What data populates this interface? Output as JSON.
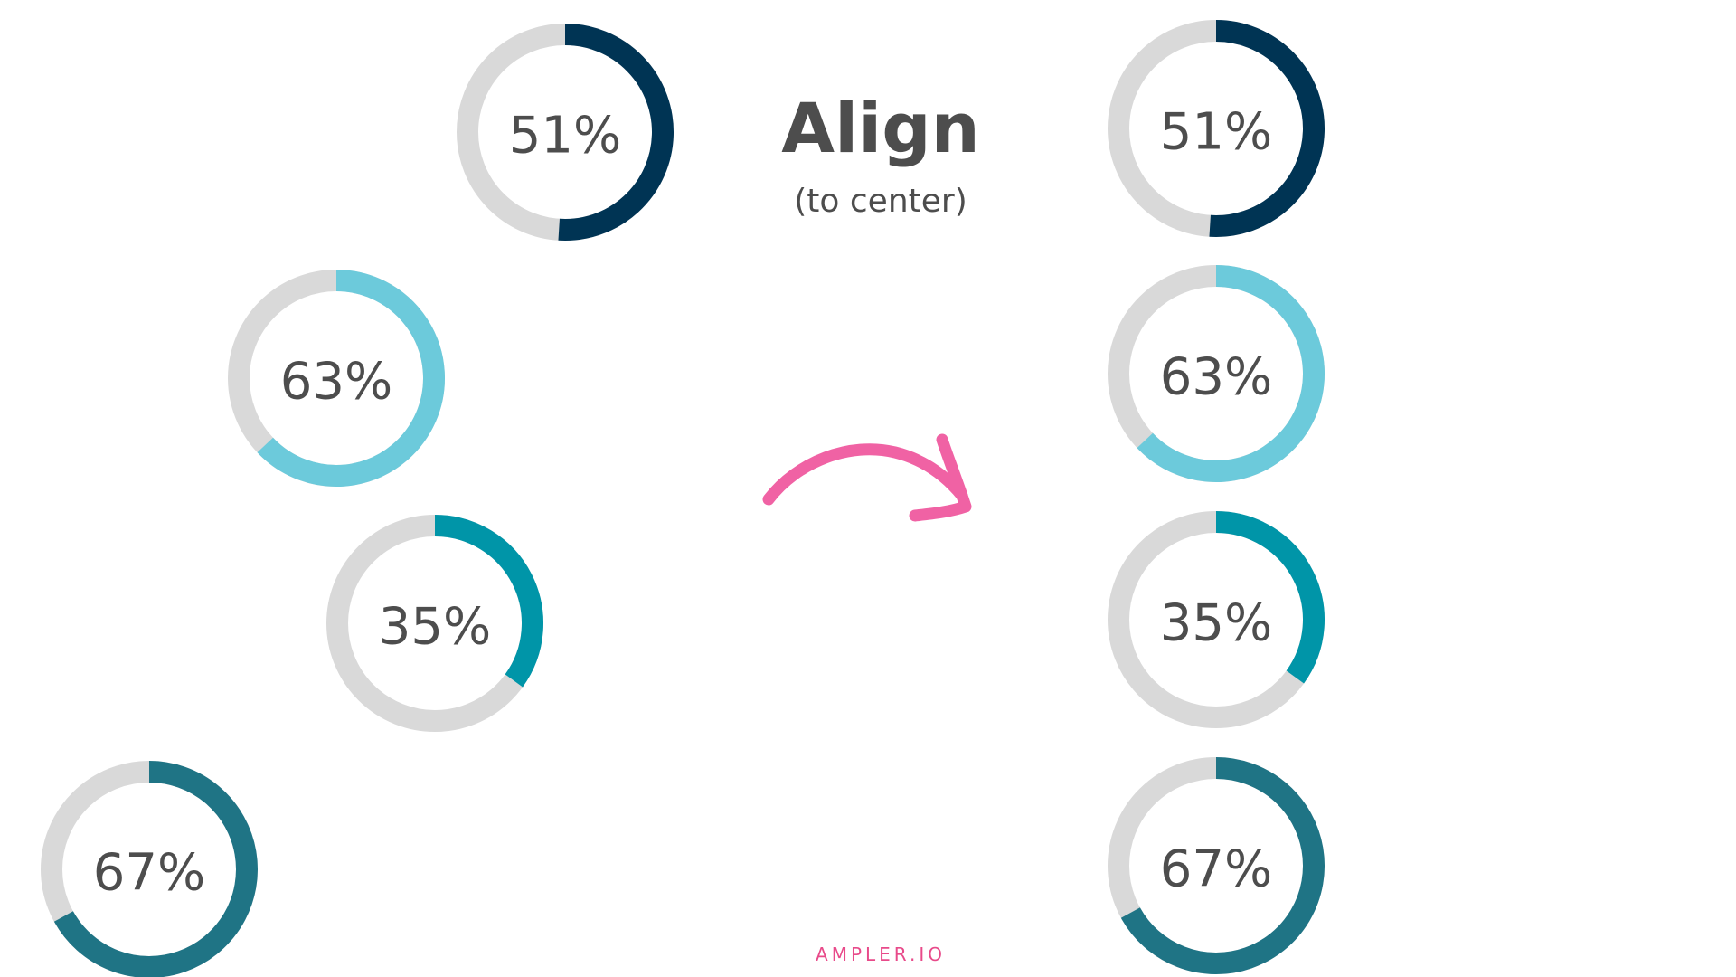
{
  "heading": {
    "title": "Align",
    "subtitle": "(to center)"
  },
  "footer": {
    "brand": "AMPLER.IO"
  },
  "colors": {
    "track": "#d9d9d9",
    "text": "#4d4d4d",
    "arrow": "#f062a4",
    "brand": "#e84a8a"
  },
  "before": {
    "donuts": [
      {
        "label": "51%",
        "value": 51,
        "color": "#003454"
      },
      {
        "label": "63%",
        "value": 63,
        "color": "#6ccadb"
      },
      {
        "label": "35%",
        "value": 35,
        "color": "#0095a8"
      },
      {
        "label": "67%",
        "value": 67,
        "color": "#1f7485"
      }
    ]
  },
  "after": {
    "donuts": [
      {
        "label": "51%",
        "value": 51,
        "color": "#003454"
      },
      {
        "label": "63%",
        "value": 63,
        "color": "#6ccadb"
      },
      {
        "label": "35%",
        "value": 35,
        "color": "#0095a8"
      },
      {
        "label": "67%",
        "value": 67,
        "color": "#1f7485"
      }
    ]
  },
  "arrow": {
    "icon": "curved-arrow-right-icon"
  }
}
